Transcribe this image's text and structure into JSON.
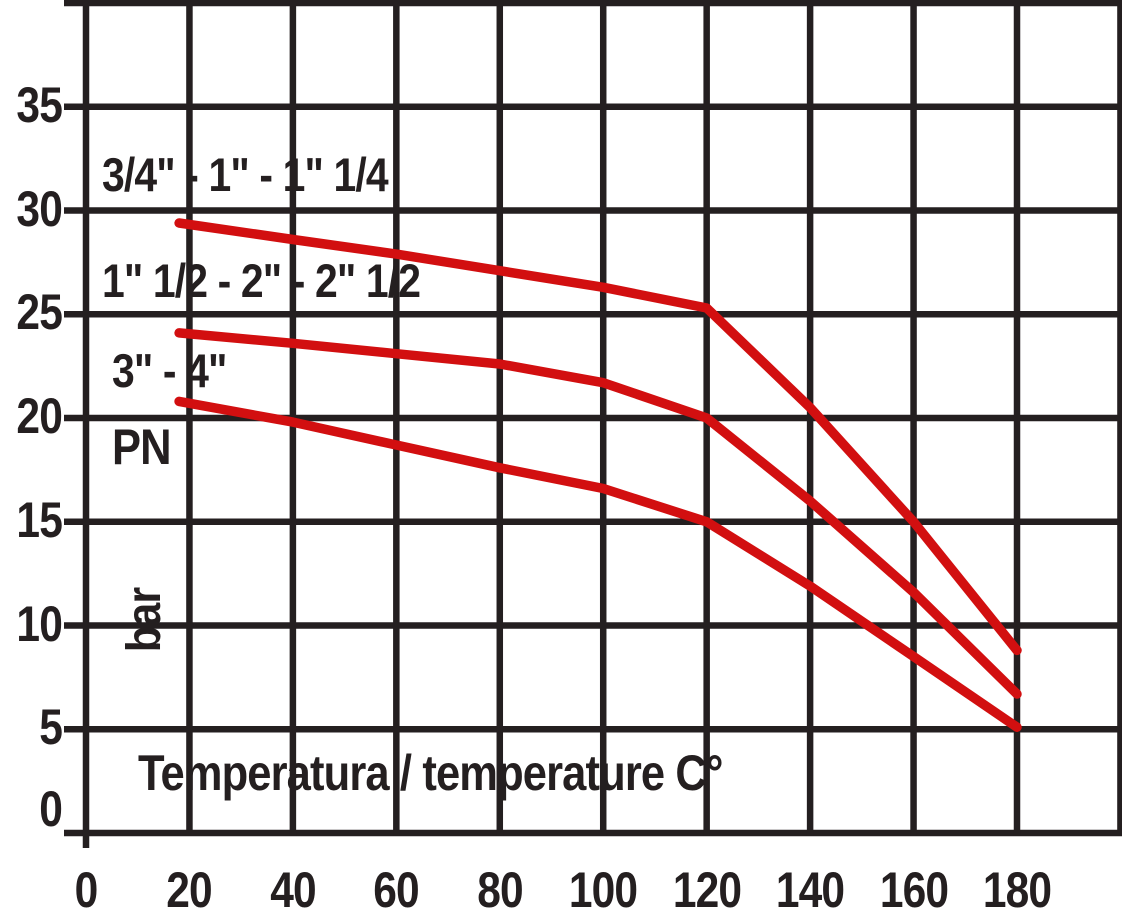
{
  "chart_data": {
    "type": "line",
    "title": "",
    "xlabel": "Temperatura / temperature C°",
    "ylabel": "PN",
    "y_unit": "bar",
    "x_ticks": [
      0,
      20,
      40,
      60,
      80,
      100,
      120,
      140,
      160,
      180
    ],
    "y_ticks": [
      35,
      30,
      25,
      20,
      15,
      10,
      5,
      0
    ],
    "xlim": [
      0,
      200
    ],
    "ylim": [
      0,
      40
    ],
    "grid": true,
    "legend_position": "inline-labels-left",
    "colors": {
      "curve": "#d20f10",
      "grid": "#241f20",
      "text": "#241f20",
      "background": "#ffffff"
    },
    "series": [
      {
        "name": "3/4\" - 1\" - 1\" 1/4",
        "points": [
          [
            18,
            29.4
          ],
          [
            40,
            28.6
          ],
          [
            60,
            27.9
          ],
          [
            80,
            27.1
          ],
          [
            100,
            26.3
          ],
          [
            120,
            25.3
          ],
          [
            140,
            20.5
          ],
          [
            160,
            15
          ],
          [
            180,
            8.8
          ]
        ]
      },
      {
        "name": "1\" 1/2 - 2\" - 2\" 1/2",
        "points": [
          [
            18,
            24.1
          ],
          [
            40,
            23.6
          ],
          [
            60,
            23.1
          ],
          [
            80,
            22.6
          ],
          [
            100,
            21.7
          ],
          [
            120,
            20
          ],
          [
            140,
            16
          ],
          [
            160,
            11.6
          ],
          [
            180,
            6.7
          ]
        ]
      },
      {
        "name": "3\" - 4\"",
        "points": [
          [
            18,
            20.8
          ],
          [
            40,
            19.8
          ],
          [
            60,
            18.7
          ],
          [
            80,
            17.6
          ],
          [
            100,
            16.6
          ],
          [
            120,
            15
          ],
          [
            140,
            11.9
          ],
          [
            160,
            8.5
          ],
          [
            180,
            5.1
          ]
        ]
      }
    ]
  }
}
